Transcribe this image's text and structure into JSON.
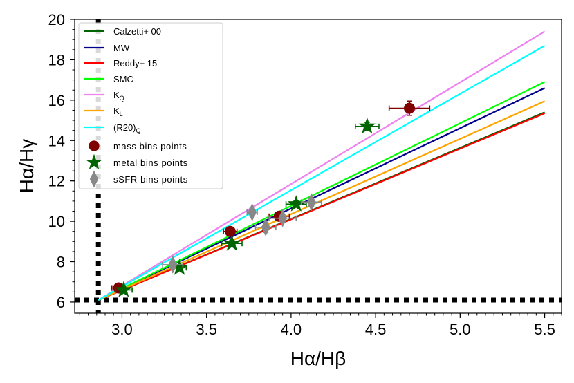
{
  "chart_data": {
    "type": "scatter",
    "xlabel": "Hα/Hβ",
    "ylabel": "Hα/Hγ",
    "xlim": [
      2.72,
      5.6
    ],
    "ylim": [
      5.45,
      20.0
    ],
    "xticks": [
      3.0,
      3.5,
      4.0,
      4.5,
      5.0,
      5.5
    ],
    "xtick_labels": [
      "3.0",
      "3.5",
      "4.0",
      "4.5",
      "5.0",
      "5.5"
    ],
    "yticks": [
      6,
      8,
      10,
      12,
      14,
      16,
      18,
      20
    ],
    "ytick_labels": [
      "6",
      "8",
      "10",
      "12",
      "14",
      "16",
      "18",
      "20"
    ],
    "legend_position": "top-left",
    "lines": [
      {
        "name": "Calzetti+ 00",
        "name_parts": [
          "Calzetti+ 00",
          ""
        ],
        "color": "#006400",
        "x": [
          2.86,
          5.5
        ],
        "y": [
          6.1,
          15.4
        ]
      },
      {
        "name": "MW",
        "name_parts": [
          "MW",
          ""
        ],
        "color": "#00008b",
        "x": [
          2.86,
          5.5
        ],
        "y": [
          6.1,
          16.6
        ]
      },
      {
        "name": "Reddy+ 15",
        "name_parts": [
          "Reddy+ 15",
          ""
        ],
        "color": "#ff0000",
        "x": [
          2.86,
          5.5
        ],
        "y": [
          6.1,
          15.35
        ]
      },
      {
        "name": "SMC",
        "name_parts": [
          "SMC",
          ""
        ],
        "color": "#00ff00",
        "x": [
          2.86,
          5.5
        ],
        "y": [
          6.1,
          16.9
        ]
      },
      {
        "name": "K_Q",
        "name_parts": [
          "K",
          "Q"
        ],
        "color": "#ee82ee",
        "x": [
          2.86,
          5.5
        ],
        "y": [
          6.1,
          19.4
        ]
      },
      {
        "name": "K_L",
        "name_parts": [
          "K",
          "L"
        ],
        "color": "#ffa500",
        "x": [
          2.86,
          5.5
        ],
        "y": [
          6.1,
          15.95
        ]
      },
      {
        "name": "(R20)_Q",
        "name_parts": [
          "(R20)",
          "Q"
        ],
        "color": "#00ffff",
        "x": [
          2.86,
          5.5
        ],
        "y": [
          6.1,
          18.7
        ]
      }
    ],
    "reference_lines": {
      "vertical_x": 2.86,
      "horizontal_y": 6.1,
      "style": "dotted",
      "color": "#000000"
    },
    "point_series": [
      {
        "name": "mass bins points",
        "marker": "circle",
        "color": "#800000",
        "points": [
          {
            "x": 2.98,
            "y": 6.7,
            "xerr": 0.04,
            "yerr": 0.15
          },
          {
            "x": 3.64,
            "y": 9.5,
            "xerr": 0.04,
            "yerr": 0.15
          },
          {
            "x": 3.93,
            "y": 10.25,
            "xerr": 0.06,
            "yerr": 0.2
          },
          {
            "x": 4.7,
            "y": 15.6,
            "xerr": 0.12,
            "yerr": 0.35
          }
        ]
      },
      {
        "name": "metal bins points",
        "marker": "star",
        "color": "#006400",
        "points": [
          {
            "x": 3.01,
            "y": 6.6,
            "xerr": 0.05,
            "yerr": 0.1
          },
          {
            "x": 3.34,
            "y": 7.7,
            "xerr": 0.04,
            "yerr": 0.15
          },
          {
            "x": 3.65,
            "y": 8.9,
            "xerr": 0.06,
            "yerr": 0.15
          },
          {
            "x": 4.03,
            "y": 10.85,
            "xerr": 0.06,
            "yerr": 0.15
          },
          {
            "x": 4.45,
            "y": 14.7,
            "xerr": 0.07,
            "yerr": 0.2
          }
        ]
      },
      {
        "name": "sSFR bins points",
        "marker": "diamond",
        "color": "#888888",
        "points": [
          {
            "x": 3.3,
            "y": 7.85,
            "xerr": 0.06,
            "yerr": 0.15
          },
          {
            "x": 3.77,
            "y": 10.45,
            "xerr": 0.03,
            "yerr": 0.2
          },
          {
            "x": 3.85,
            "y": 9.7,
            "xerr": 0.06,
            "yerr": 0.25
          },
          {
            "x": 3.95,
            "y": 10.15,
            "xerr": 0.08,
            "yerr": 0.2
          },
          {
            "x": 4.12,
            "y": 10.95,
            "xerr": 0.06,
            "yerr": 0.2
          }
        ]
      }
    ]
  }
}
